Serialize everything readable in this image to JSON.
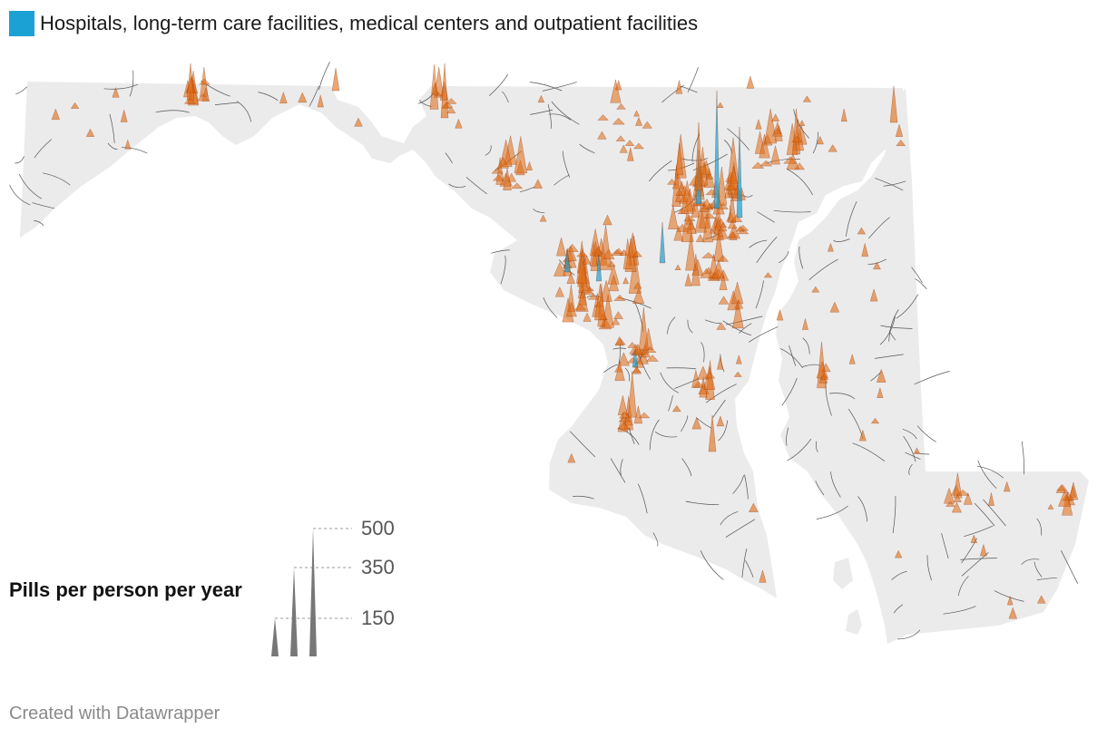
{
  "legend": {
    "label": "Hospitals, long-term care facilities, medical centers and outpatient facilities",
    "color": "#1ba1d4"
  },
  "spike_color": "#e06a10",
  "spike_dark_color": "#8a2a05",
  "land_color": "#ebebeb",
  "border_color": "#555555",
  "scale": {
    "title": "Pills per person per year",
    "values": [
      {
        "value": 150,
        "label": "150"
      },
      {
        "value": 350,
        "label": "350"
      },
      {
        "value": 500,
        "label": "500"
      }
    ]
  },
  "credit": "Created with Datawrapper"
}
